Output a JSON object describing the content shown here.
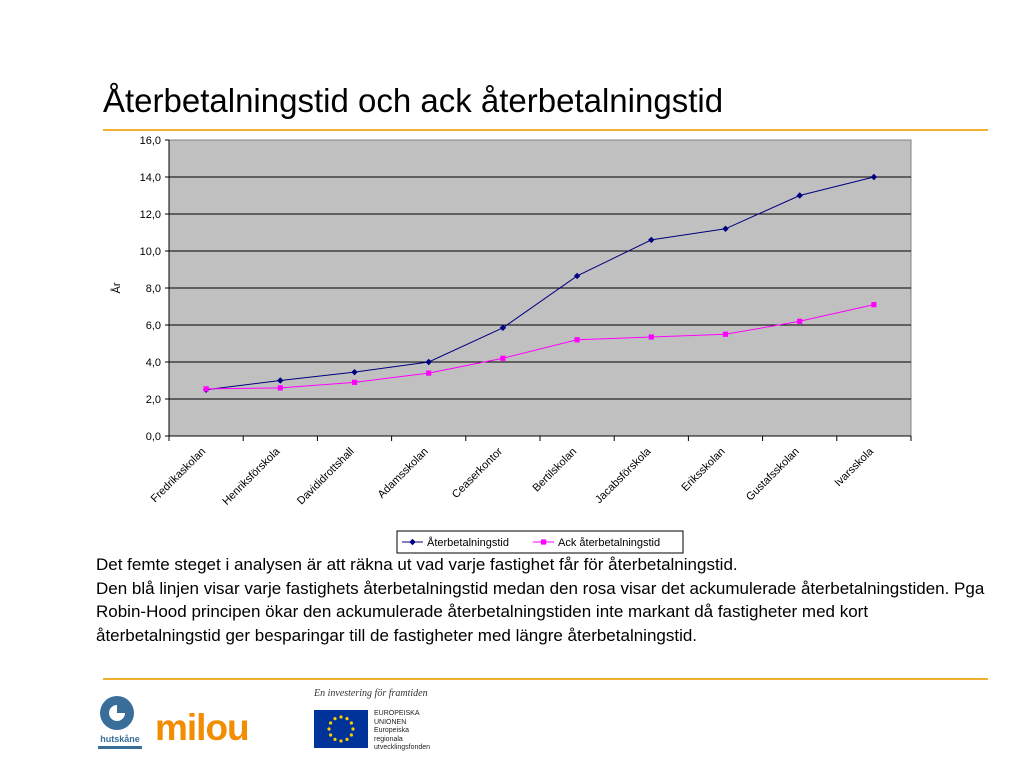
{
  "slide": {
    "title": "Återbetalningstid och ack återbetalningstid",
    "caption_lines": [
      "Det femte steget i analysen är att räkna ut vad varje fastighet får för återbetalningstid.",
      "Den blå linjen visar varje fastighets återbetalningstid medan den rosa visar det ackumulerade återbetalningstiden. Pga Robin-Hood principen ökar den ackumulerade återbetalningstiden inte markant då fastigheter med kort återbetalningstid ger besparingar till de fastigheter med längre återbetalningstid."
    ]
  },
  "footer": {
    "tagline": "En investering för framtiden",
    "milou": "milou",
    "hutskane": "hutskåne",
    "eu_lines": [
      "EUROPEISKA",
      "UNIONEN",
      "Europeiska",
      "regionala",
      "utvecklingsfonden"
    ]
  },
  "colors": {
    "accent_rule": "#f0b030",
    "plot_bg": "#c0c0c0",
    "series1": "#000080",
    "series2": "#ff00ff",
    "milou": "#f28c00"
  },
  "chart_data": {
    "type": "line",
    "title": "",
    "xlabel": "",
    "ylabel": "År",
    "ylim": [
      0,
      16
    ],
    "yticks": [
      "0,0",
      "2,0",
      "4,0",
      "6,0",
      "8,0",
      "10,0",
      "12,0",
      "14,0",
      "16,0"
    ],
    "grid": true,
    "legend": "bottom",
    "categories": [
      "Fredrikaskolan",
      "Henriksförskola",
      "Davididrottshall",
      "Adamsskolan",
      "Ceaserkontor",
      "Bertilskolan",
      "Jacabsförskola",
      "Eriksskolan",
      "Gustafsskolan",
      "Ivarsskola"
    ],
    "series": [
      {
        "name": "Återbetalningstid",
        "color": "#000080",
        "marker": "diamond",
        "values": [
          2.5,
          3.0,
          3.45,
          4.0,
          5.85,
          8.65,
          10.6,
          11.2,
          13.0,
          14.0
        ]
      },
      {
        "name": "Ack återbetalningstid",
        "color": "#ff00ff",
        "marker": "square",
        "values": [
          2.55,
          2.6,
          2.9,
          3.4,
          4.2,
          5.2,
          5.35,
          5.5,
          6.2,
          7.1
        ]
      }
    ]
  }
}
